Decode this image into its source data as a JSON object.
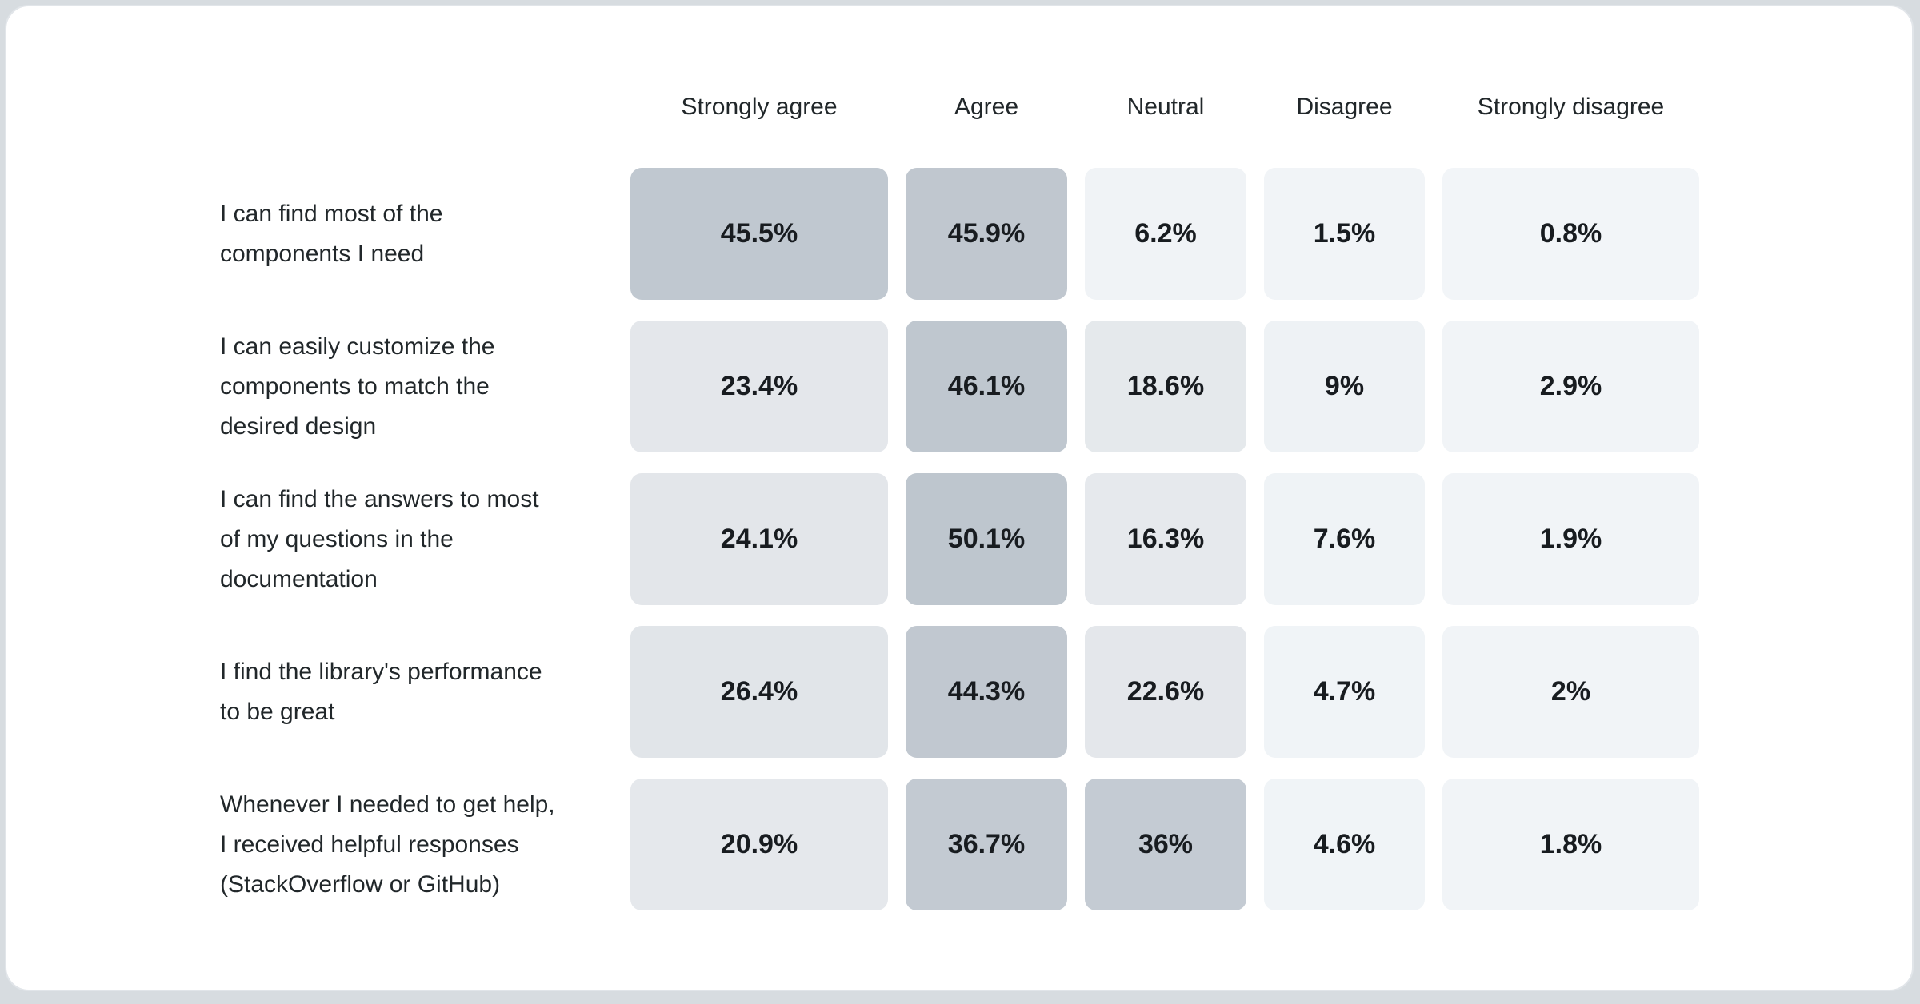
{
  "colors": {
    "page_background": "#d7dce0",
    "card_background": "#ffffff",
    "card_border": "#e1e5e9",
    "header_text": "#21272a",
    "statement_text": "#21272a",
    "value_text": "#181c20"
  },
  "chart_data": {
    "type": "heatmap",
    "title": "",
    "legend_position": "none",
    "grid": false,
    "color_scale": {
      "min_color": "#f2f5f8",
      "max_color": "#bec6ce",
      "domain_percent": [
        0,
        50.1
      ]
    },
    "columns": [
      "Strongly agree",
      "Agree",
      "Neutral",
      "Disagree",
      "Strongly disagree"
    ],
    "rows": [
      {
        "statement": "I can find most of the components I need",
        "values": [
          45.5,
          45.9,
          6.2,
          1.5,
          0.8
        ],
        "labels": [
          "45.5%",
          "45.9%",
          "6.2%",
          "1.5%",
          "0.8%"
        ],
        "colors": [
          "#c0c8d0",
          "#c0c7cf",
          "#f0f3f6",
          "#f1f4f7",
          "#f2f5f8"
        ]
      },
      {
        "statement": "I can easily customize the components to match the desired design",
        "values": [
          23.4,
          46.1,
          18.6,
          9,
          2.9
        ],
        "labels": [
          "23.4%",
          "46.1%",
          "18.6%",
          "9%",
          "2.9%"
        ],
        "colors": [
          "#e4e7eb",
          "#bfc7cf",
          "#e5e9ec",
          "#eef2f5",
          "#f1f4f7"
        ]
      },
      {
        "statement": "I can find the answers to most of my questions in the documentation",
        "values": [
          24.1,
          50.1,
          16.3,
          7.6,
          1.9
        ],
        "labels": [
          "24.1%",
          "50.1%",
          "16.3%",
          "7.6%",
          "1.9%"
        ],
        "colors": [
          "#e3e6ea",
          "#bec6ce",
          "#e6e9ed",
          "#eff3f6",
          "#f1f4f7"
        ]
      },
      {
        "statement": "I find the library's performance to be great",
        "values": [
          26.4,
          44.3,
          22.6,
          4.7,
          2
        ],
        "labels": [
          "26.4%",
          "44.3%",
          "22.6%",
          "4.7%",
          "2%"
        ],
        "colors": [
          "#e1e5e9",
          "#c1c8d0",
          "#e4e7eb",
          "#f0f4f7",
          "#f1f4f7"
        ]
      },
      {
        "statement": "Whenever I needed to get help, I received helpful responses (StackOverflow or GitHub)",
        "values": [
          20.9,
          36.7,
          36,
          4.6,
          1.8
        ],
        "labels": [
          "20.9%",
          "36.7%",
          "36%",
          "4.6%",
          "1.8%"
        ],
        "colors": [
          "#e5e8ec",
          "#c3cad2",
          "#c4cbd3",
          "#f0f4f7",
          "#f1f4f7"
        ]
      }
    ]
  }
}
